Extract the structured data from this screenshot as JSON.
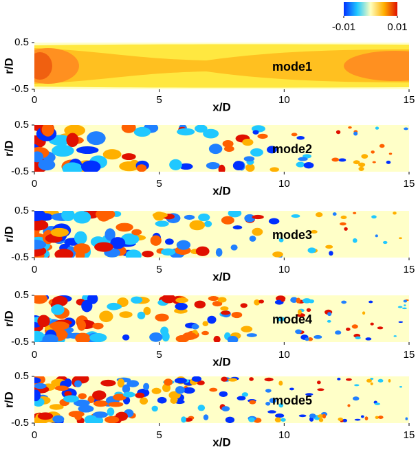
{
  "colorbar": {
    "lim": [
      -0.01,
      0.01
    ],
    "ticks": [
      -0.01,
      0.01
    ],
    "colors": [
      "#0030ff",
      "#20c8ff",
      "#ffffc0",
      "#ffb000",
      "#e01000"
    ]
  },
  "chart_data": [
    {
      "type": "contour",
      "annotation": "mode1",
      "xlabel": "x/D",
      "ylabel": "r/D",
      "xlim": [
        0,
        15
      ],
      "ylim": [
        -0.5,
        0.5
      ],
      "xticks": [
        0,
        5,
        10,
        15
      ],
      "yticks": [
        -0.5,
        0.5
      ]
    },
    {
      "type": "contour",
      "annotation": "mode2",
      "xlabel": "x/D",
      "ylabel": "r/D",
      "xlim": [
        0,
        15
      ],
      "ylim": [
        -0.5,
        0.5
      ],
      "xticks": [
        0,
        5,
        10,
        15
      ],
      "yticks": [
        -0.5,
        0.5
      ]
    },
    {
      "type": "contour",
      "annotation": "mode3",
      "xlabel": "x/D",
      "ylabel": "r/D",
      "xlim": [
        0,
        15
      ],
      "ylim": [
        -0.5,
        0.5
      ],
      "xticks": [
        0,
        5,
        10,
        15
      ],
      "yticks": [
        -0.5,
        0.5
      ]
    },
    {
      "type": "contour",
      "annotation": "mode4",
      "xlabel": "x/D",
      "ylabel": "r/D",
      "xlim": [
        0,
        15
      ],
      "ylim": [
        -0.5,
        0.5
      ],
      "xticks": [
        0,
        5,
        10,
        15
      ],
      "yticks": [
        -0.5,
        0.5
      ]
    },
    {
      "type": "contour",
      "annotation": "mode5",
      "xlabel": "x/D",
      "ylabel": "r/D",
      "xlim": [
        0,
        15
      ],
      "ylim": [
        -0.5,
        0.5
      ],
      "xticks": [
        0,
        5,
        10,
        15
      ],
      "yticks": [
        -0.5,
        0.5
      ]
    }
  ]
}
